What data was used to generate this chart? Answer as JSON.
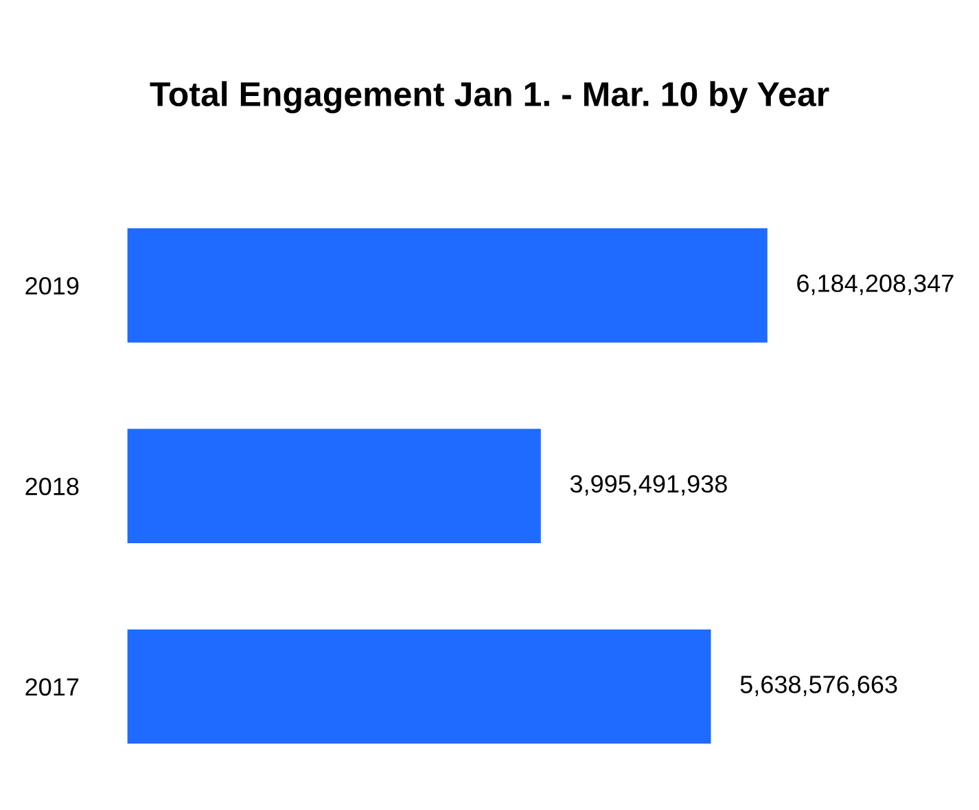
{
  "chart_data": {
    "type": "bar",
    "orientation": "horizontal",
    "title": "Total Engagement Jan 1. - Mar. 10 by Year",
    "categories": [
      "2019",
      "2018",
      "2017"
    ],
    "values": [
      6184208347,
      3995491938,
      5638576663
    ],
    "value_labels": [
      "6,184,208,347",
      "3,995,491,938",
      "5,638,576,663"
    ],
    "color": "#1f6bff",
    "grid": false,
    "legend": false,
    "tick_labels": "y"
  }
}
